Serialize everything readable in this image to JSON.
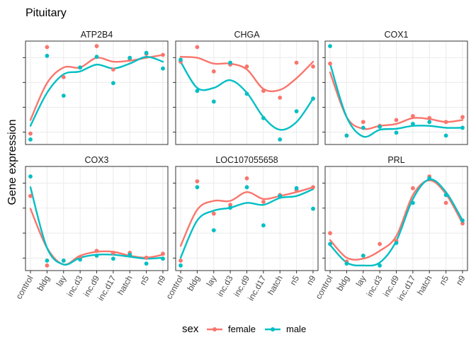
{
  "figure": {
    "title": "Pituitary",
    "ylabel": "Gene expression",
    "legend": {
      "title": "sex",
      "placement": "bottom",
      "entries": [
        {
          "name": "female",
          "color": "#F8766D"
        },
        {
          "name": "male",
          "color": "#00BFC4"
        }
      ]
    }
  },
  "chart_data": [
    {
      "type": "scatter",
      "panel": "ATP2B4",
      "title": "ATP2B4",
      "categories": [
        "control",
        "bldg",
        "lay",
        "inc.d3",
        "inc.d9",
        "inc.d17",
        "hatch",
        "n5",
        "n9"
      ],
      "ylim": [
        0,
        1
      ],
      "series": [
        {
          "name": "female",
          "color": "#F8766D",
          "values": [
            0.08,
            0.97,
            0.66,
            0.76,
            0.98,
            0.74,
            0.84,
            0.9,
            0.89
          ],
          "smooth": [
            0.22,
            0.6,
            0.76,
            0.76,
            0.86,
            0.82,
            0.83,
            0.86,
            0.89
          ]
        },
        {
          "name": "male",
          "color": "#00BFC4",
          "values": [
            0.02,
            0.88,
            0.47,
            0.76,
            0.87,
            0.6,
            0.86,
            0.91,
            0.75
          ],
          "smooth": [
            0.16,
            0.5,
            0.69,
            0.72,
            0.79,
            0.75,
            0.8,
            0.87,
            0.82
          ]
        }
      ]
    },
    {
      "type": "scatter",
      "panel": "CHGA",
      "title": "CHGA",
      "categories": [
        "control",
        "bldg",
        "lay",
        "inc.d3",
        "inc.d9",
        "inc.d17",
        "hatch",
        "n5",
        "n9"
      ],
      "ylim": [
        0,
        1
      ],
      "series": [
        {
          "name": "female",
          "color": "#F8766D",
          "values": [
            0.82,
            0.97,
            0.72,
            0.79,
            0.77,
            0.52,
            0.45,
            0.81,
            0.77
          ],
          "smooth": [
            0.87,
            0.86,
            0.8,
            0.8,
            0.74,
            0.54,
            0.53,
            0.65,
            0.82
          ]
        },
        {
          "name": "male",
          "color": "#00BFC4",
          "values": [
            0.84,
            0.52,
            0.41,
            0.81,
            0.49,
            0.24,
            0.02,
            0.31,
            0.44
          ],
          "smooth": [
            0.82,
            0.55,
            0.55,
            0.63,
            0.5,
            0.25,
            0.12,
            0.2,
            0.44
          ]
        }
      ]
    },
    {
      "type": "scatter",
      "panel": "COX1",
      "title": "COX1",
      "categories": [
        "control",
        "bldg",
        "lay",
        "inc.d3",
        "inc.d9",
        "inc.d17",
        "hatch",
        "n5",
        "n9"
      ],
      "ylim": [
        0,
        1
      ],
      "series": [
        {
          "name": "female",
          "color": "#F8766D",
          "values": [
            0.8,
            0.06,
            0.2,
            0.16,
            0.22,
            0.26,
            0.24,
            0.2,
            0.25
          ],
          "smooth": [
            0.71,
            0.25,
            0.13,
            0.16,
            0.18,
            0.24,
            0.23,
            0.2,
            0.22
          ]
        },
        {
          "name": "male",
          "color": "#00BFC4",
          "values": [
            0.98,
            0.06,
            0.14,
            0.15,
            0.09,
            0.18,
            0.2,
            0.06,
            0.14
          ],
          "smooth": [
            0.8,
            0.25,
            0.05,
            0.12,
            0.13,
            0.16,
            0.16,
            0.14,
            0.14
          ]
        }
      ]
    },
    {
      "type": "scatter",
      "panel": "COX3",
      "title": "COX3",
      "categories": [
        "control",
        "bldg",
        "lay",
        "inc.d3",
        "inc.d9",
        "inc.d17",
        "hatch",
        "n5",
        "n9"
      ],
      "ylim": [
        0,
        1
      ],
      "series": [
        {
          "name": "female",
          "color": "#F8766D",
          "values": [
            0.73,
            0.02,
            0.07,
            0.1,
            0.17,
            0.15,
            0.15,
            0.1,
            0.14
          ],
          "smooth": [
            0.6,
            0.2,
            0.03,
            0.12,
            0.16,
            0.16,
            0.12,
            0.1,
            0.13
          ]
        },
        {
          "name": "male",
          "color": "#00BFC4",
          "values": [
            0.93,
            0.07,
            0.07,
            0.08,
            0.12,
            0.09,
            0.13,
            0.04,
            0.09
          ],
          "smooth": [
            0.82,
            0.2,
            0.03,
            0.1,
            0.13,
            0.13,
            0.11,
            0.09,
            0.1
          ]
        }
      ]
    },
    {
      "type": "scatter",
      "panel": "LOC107055658",
      "title": "LOC107055658",
      "categories": [
        "control",
        "bldg",
        "lay",
        "inc.d3",
        "inc.d9",
        "inc.d17",
        "hatch",
        "n5",
        "n9"
      ],
      "ylim": [
        0,
        1
      ],
      "series": [
        {
          "name": "female",
          "color": "#F8766D",
          "values": [
            0.07,
            0.88,
            0.55,
            0.64,
            0.91,
            0.67,
            0.74,
            0.79,
            0.82
          ],
          "smooth": [
            0.22,
            0.59,
            0.68,
            0.68,
            0.77,
            0.7,
            0.73,
            0.77,
            0.82
          ]
        },
        {
          "name": "male",
          "color": "#00BFC4",
          "values": [
            0.02,
            0.82,
            0.38,
            0.61,
            0.82,
            0.43,
            0.73,
            0.81,
            0.6
          ],
          "smooth": [
            0.1,
            0.48,
            0.58,
            0.61,
            0.66,
            0.64,
            0.71,
            0.73,
            0.8
          ]
        }
      ]
    },
    {
      "type": "scatter",
      "panel": "PRL",
      "title": "PRL",
      "categories": [
        "control",
        "bldg",
        "lay",
        "inc.d3",
        "inc.d9",
        "inc.d17",
        "hatch",
        "n5",
        "n9"
      ],
      "ylim": [
        0,
        1
      ],
      "series": [
        {
          "name": "female",
          "color": "#F8766D",
          "values": [
            0.35,
            0.06,
            0.12,
            0.24,
            0.27,
            0.81,
            0.93,
            0.66,
            0.45
          ],
          "smooth": [
            0.28,
            0.1,
            0.09,
            0.17,
            0.32,
            0.74,
            0.89,
            0.75,
            0.45
          ]
        },
        {
          "name": "male",
          "color": "#00BFC4",
          "values": [
            0.24,
            0.04,
            0.12,
            0.02,
            0.25,
            0.66,
            0.91,
            0.74,
            0.48
          ],
          "smooth": [
            0.23,
            0.05,
            0.02,
            0.05,
            0.27,
            0.7,
            0.9,
            0.77,
            0.48
          ]
        }
      ]
    }
  ]
}
